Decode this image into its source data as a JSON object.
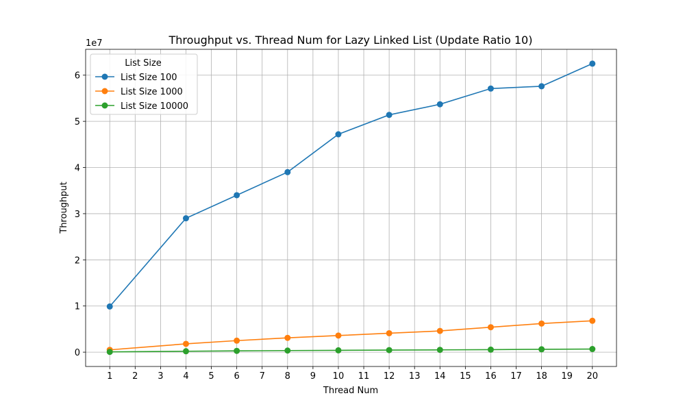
{
  "chart_data": {
    "type": "line",
    "title": "Throughput vs. Thread Num for Lazy Linked List  (Update Ratio 10)",
    "xlabel": "Thread Num",
    "ylabel": "Throughput",
    "y_offset_label": "1e7",
    "x_ticks": [
      1,
      2,
      3,
      4,
      5,
      6,
      7,
      8,
      9,
      10,
      11,
      12,
      13,
      14,
      15,
      16,
      17,
      18,
      19,
      20
    ],
    "y_ticks": [
      0,
      1,
      2,
      3,
      4,
      5,
      6
    ],
    "y_tick_scale": 10000000,
    "xlim": [
      0.05,
      20.95
    ],
    "ylim": [
      -3100000,
      65600000
    ],
    "grid": true,
    "legend": {
      "title": "List Size",
      "position": "upper-left"
    },
    "x": [
      1,
      4,
      6,
      8,
      10,
      12,
      14,
      16,
      18,
      20
    ],
    "series": [
      {
        "name": "List Size 100",
        "color": "#1f77b4",
        "values": [
          9900000,
          29000000,
          34000000,
          39000000,
          47200000,
          51400000,
          53700000,
          57100000,
          57600000,
          62500000
        ]
      },
      {
        "name": "List Size 1000",
        "color": "#ff7f0e",
        "values": [
          500000,
          1800000,
          2500000,
          3100000,
          3600000,
          4100000,
          4600000,
          5400000,
          6200000,
          6800000
        ]
      },
      {
        "name": "List Size 10000",
        "color": "#2ca02c",
        "values": [
          60000,
          200000,
          280000,
          350000,
          400000,
          450000,
          500000,
          550000,
          620000,
          680000
        ]
      }
    ]
  }
}
